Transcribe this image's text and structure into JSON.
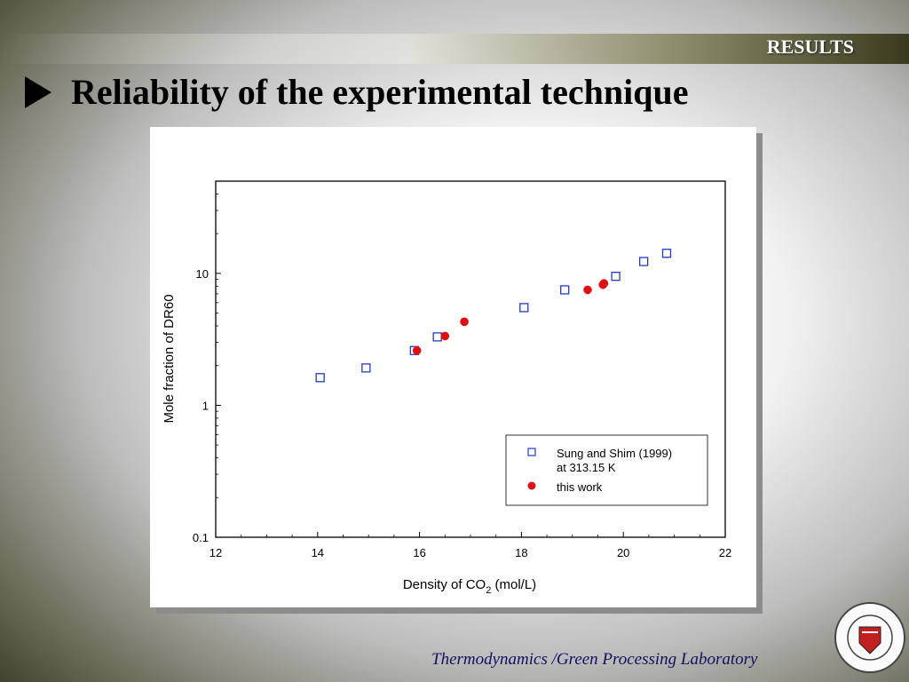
{
  "header": {
    "section_label": "RESULTS",
    "title": "Reliability of the experimental technique"
  },
  "footer": {
    "lab_name": "Thermodynamics /Green Processing Laboratory"
  },
  "colors": {
    "series_open": "#1e3cc8",
    "series_filled": "#e01010"
  },
  "icons": {
    "bullet": "triangle-right-icon",
    "logo": "university-seal-icon"
  },
  "chart_data": {
    "type": "scatter",
    "xlabel_main": "Density of CO",
    "xlabel_sub": "2",
    "xlabel_unit": " (mol/L)",
    "ylabel": "Mole fraction of DR60",
    "xlim": [
      12,
      22
    ],
    "ylim": [
      0.1,
      50
    ],
    "yscale": "log",
    "x_ticks": [
      "12",
      "14",
      "16",
      "18",
      "20",
      "22"
    ],
    "y_ticks": [
      "0.1",
      "1",
      "10"
    ],
    "legend_position": "bottom-right",
    "series": [
      {
        "name": "Sung and Shim (1999)",
        "name_line2": "at 313.15 K",
        "marker": "open-square",
        "points": [
          {
            "x": 14.05,
            "y": 1.62
          },
          {
            "x": 14.95,
            "y": 1.92
          },
          {
            "x": 15.9,
            "y": 2.6
          },
          {
            "x": 16.35,
            "y": 3.3
          },
          {
            "x": 18.05,
            "y": 5.5
          },
          {
            "x": 18.85,
            "y": 7.5
          },
          {
            "x": 19.85,
            "y": 9.5
          },
          {
            "x": 20.4,
            "y": 12.3
          },
          {
            "x": 20.85,
            "y": 14.2
          }
        ]
      },
      {
        "name": "this work",
        "marker": "filled-circle",
        "points": [
          {
            "x": 15.95,
            "y": 2.6
          },
          {
            "x": 16.5,
            "y": 3.35
          },
          {
            "x": 16.88,
            "y": 4.3
          },
          {
            "x": 19.3,
            "y": 7.5
          },
          {
            "x": 19.6,
            "y": 8.2
          },
          {
            "x": 19.62,
            "y": 8.4
          }
        ]
      }
    ]
  }
}
